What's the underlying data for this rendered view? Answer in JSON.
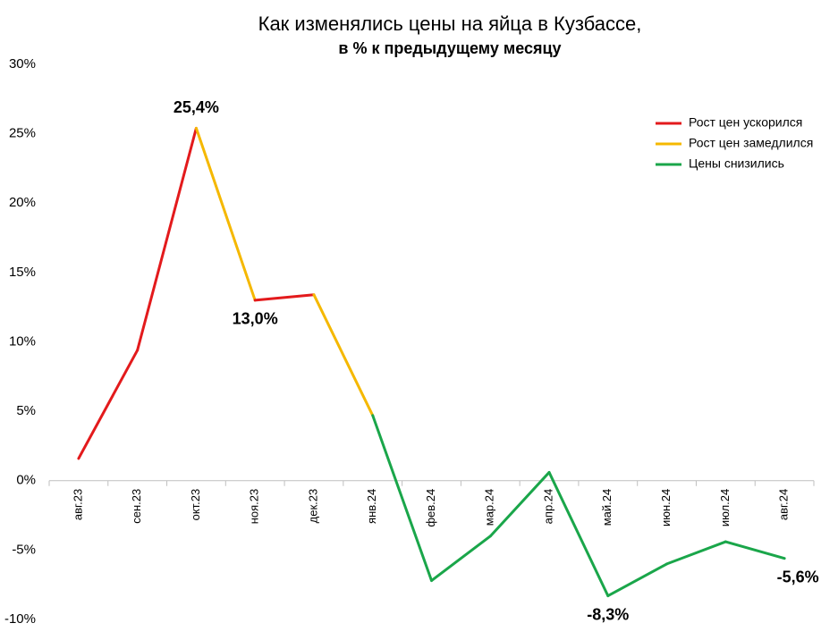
{
  "chart_data": {
    "type": "line",
    "title": "Как изменялись цены на яйца в Кузбассе,",
    "subtitle": "в % к предыдущему  месяцу",
    "categories": [
      "авг.23",
      "сен.23",
      "окт.23",
      "ноя.23",
      "дек.23",
      "янв.24",
      "фев.24",
      "мар.24",
      "апр.24",
      "май.24",
      "июн.24",
      "июл.24",
      "авг.24"
    ],
    "values": [
      1.6,
      9.4,
      25.4,
      13.0,
      13.4,
      4.7,
      -7.2,
      -4.0,
      0.6,
      -8.3,
      -6.0,
      -4.4,
      -5.6
    ],
    "value_labels": [
      null,
      null,
      "25,4%",
      "13,0%",
      null,
      null,
      null,
      null,
      null,
      "-8,3%",
      null,
      null,
      "-5,6%"
    ],
    "legend_items": [
      {
        "name": "Рост цен ускорился",
        "color": "#e31a1c"
      },
      {
        "name": "Рост цен замедлился",
        "color": "#f5b800"
      },
      {
        "name": "Цены снизились",
        "color": "#1aa64a"
      }
    ],
    "segment_colors": [
      0,
      0,
      1,
      0,
      1,
      2,
      2,
      2,
      2,
      2,
      2,
      2
    ],
    "ylim": [
      -10,
      30
    ],
    "yticks": [
      {
        "value": -10,
        "label": "-10%"
      },
      {
        "value": -5,
        "label": "-5%"
      },
      {
        "value": 0,
        "label": "0%"
      },
      {
        "value": 5,
        "label": "5%"
      },
      {
        "value": 10,
        "label": "10%"
      },
      {
        "value": 15,
        "label": "15%"
      },
      {
        "value": 20,
        "label": "20%"
      },
      {
        "value": 25,
        "label": "25%"
      },
      {
        "value": 30,
        "label": "30%"
      }
    ],
    "grid": false
  }
}
